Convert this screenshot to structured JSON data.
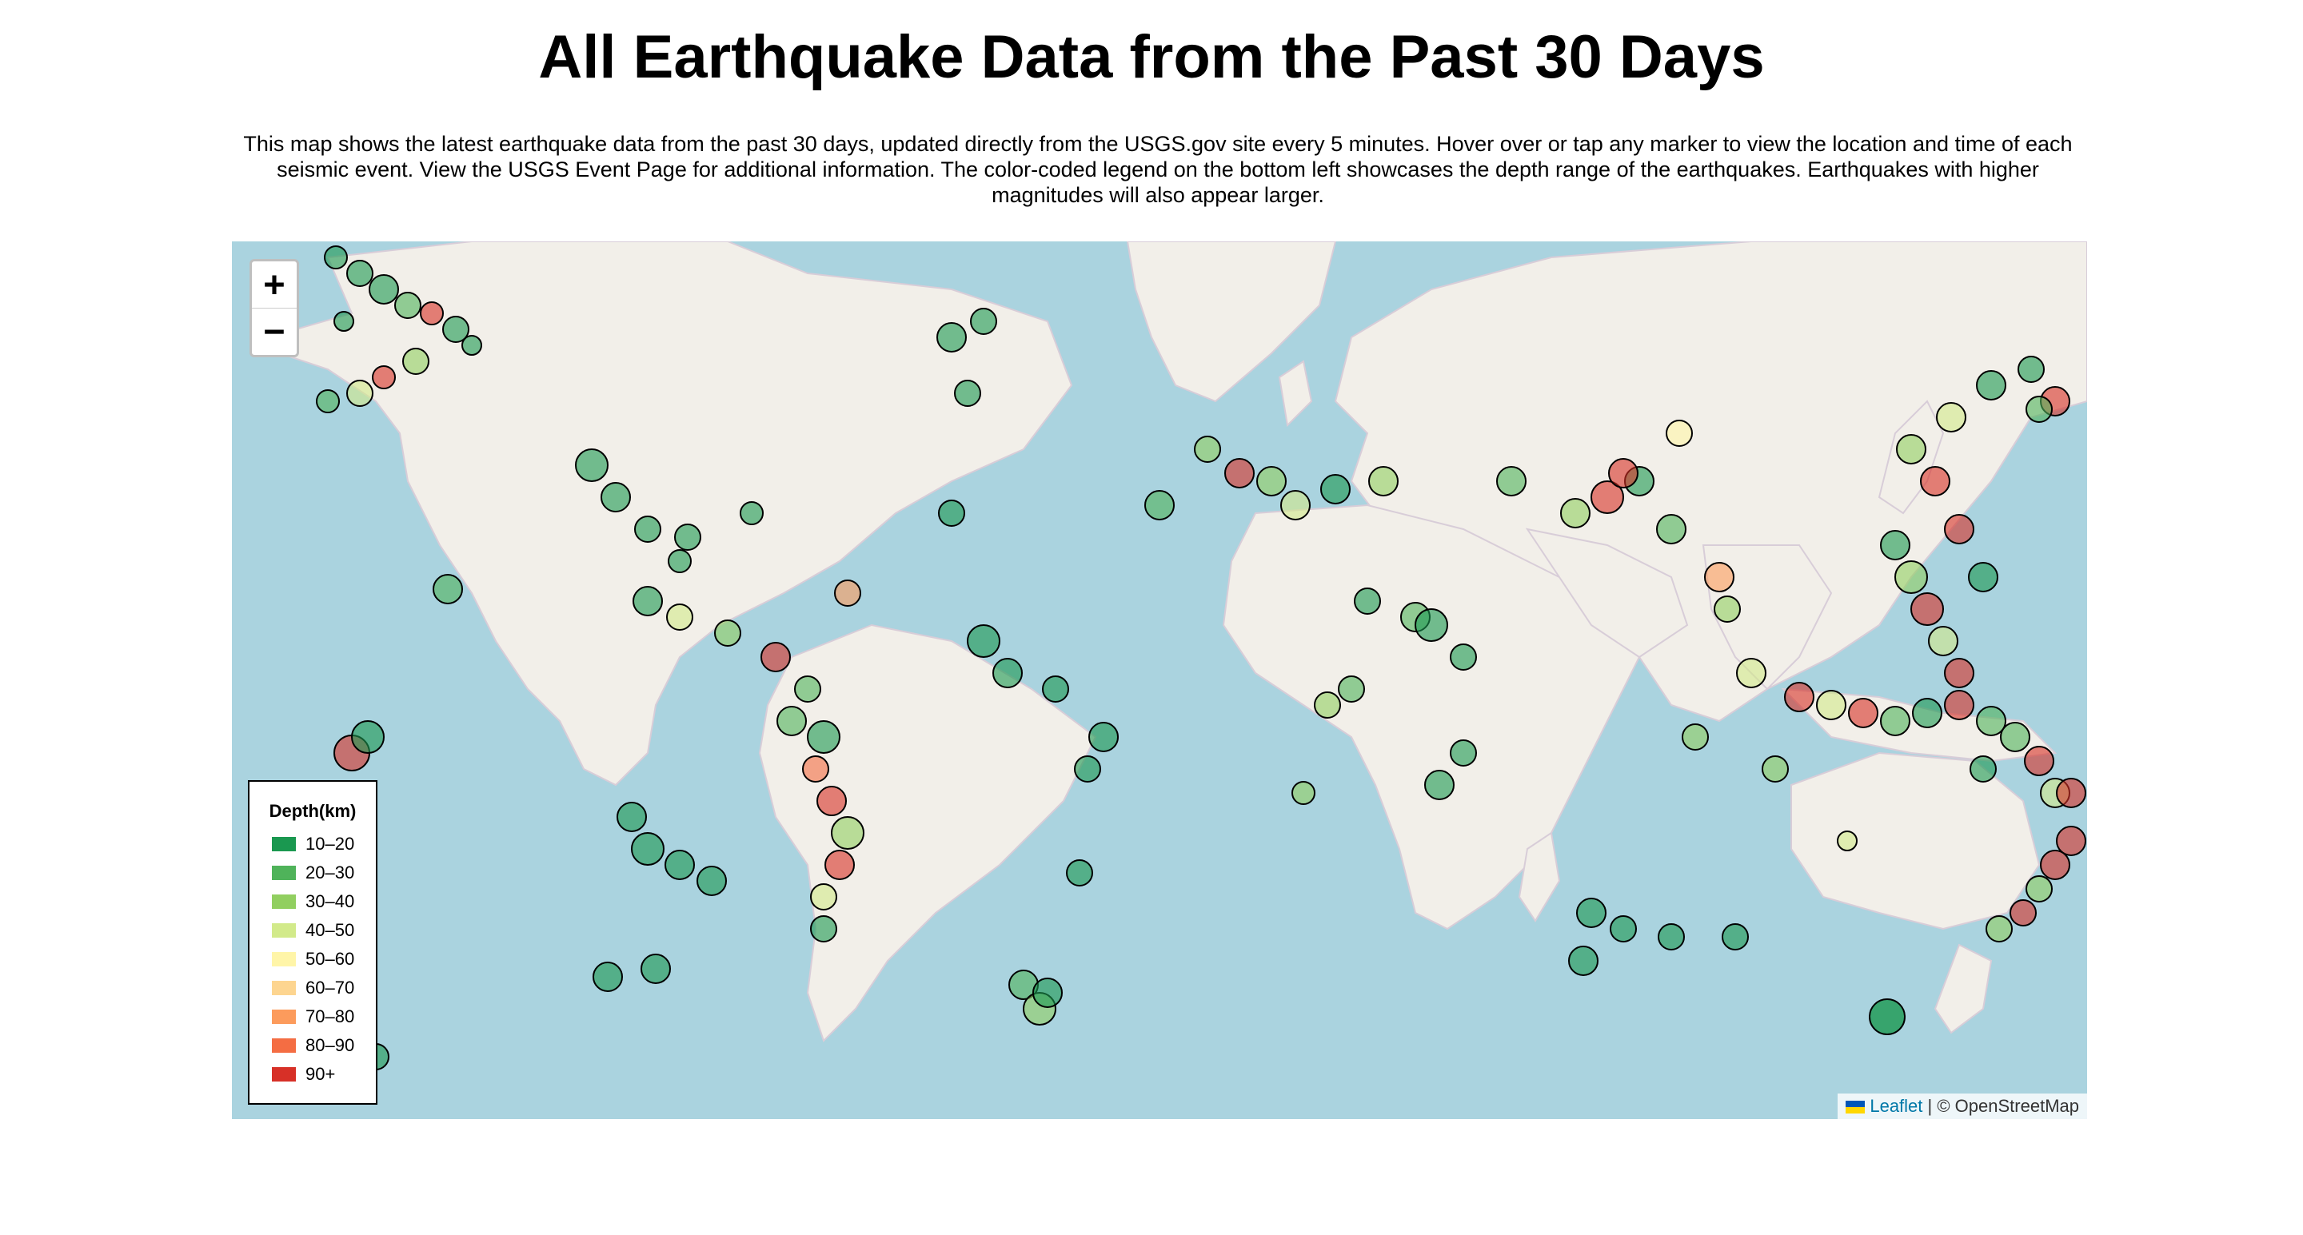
{
  "header": {
    "title": "All Earthquake Data from the Past 30 Days",
    "description": "This map shows the latest earthquake data from the past 30 days, updated directly from the USGS.gov site every 5 minutes. Hover over or tap any marker to view the location and time of each seismic event. View the USGS Event Page for additional information. The color-coded legend on the bottom left showcases the depth range of the earthquakes. Earthquakes with higher magnitudes will also appear larger."
  },
  "map": {
    "zoom_in_label": "+",
    "zoom_out_label": "−",
    "attribution": {
      "leaflet_label": "Leaflet",
      "separator": " | ",
      "osm_label": "© OpenStreetMap"
    },
    "colors": {
      "water": "#aad3df",
      "land": "#f2efe9",
      "border": "#c8b4c8"
    }
  },
  "legend": {
    "title": "Depth(km)",
    "items": [
      {
        "label": "10–20",
        "color": "#1a9850"
      },
      {
        "label": "20–30",
        "color": "#4fb35a"
      },
      {
        "label": "30–40",
        "color": "#91cf60"
      },
      {
        "label": "40–50",
        "color": "#d2ea8a"
      },
      {
        "label": "50–60",
        "color": "#fff5a8"
      },
      {
        "label": "60–70",
        "color": "#fdd590"
      },
      {
        "label": "70–80",
        "color": "#fc9b5c"
      },
      {
        "label": "80–90",
        "color": "#f46d43"
      },
      {
        "label": "90+",
        "color": "#d73027"
      }
    ]
  }
}
